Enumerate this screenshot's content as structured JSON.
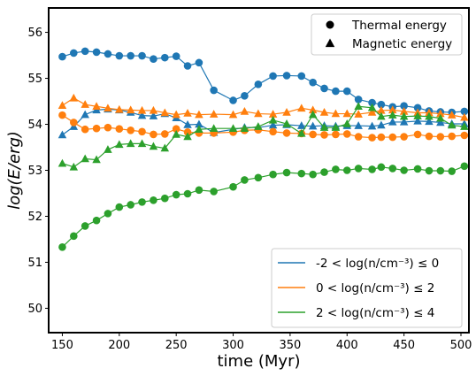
{
  "chart_data": {
    "type": "line",
    "xlabel": "time (Myr)",
    "ylabel": "log(E/erg)",
    "xlim": [
      138,
      507
    ],
    "ylim": [
      49.47,
      56.53
    ],
    "xticks": [
      150,
      200,
      250,
      300,
      350,
      400,
      450,
      500
    ],
    "yticks": [
      50,
      51,
      52,
      53,
      54,
      55,
      56
    ],
    "grid": false,
    "marker_legend": {
      "placement": "top-right",
      "entries": [
        {
          "label": "Thermal energy",
          "marker": "circle"
        },
        {
          "label": "Magnetic energy",
          "marker": "triangle"
        }
      ]
    },
    "color_legend_placement": "lower-right",
    "x": [
      150,
      160,
      170,
      180,
      190,
      200,
      210,
      220,
      230,
      240,
      250,
      260,
      270,
      283,
      300,
      310,
      322,
      335,
      347,
      360,
      370,
      380,
      390,
      400,
      410,
      422,
      430,
      440,
      450,
      462,
      472,
      482,
      492,
      503
    ],
    "series": [
      {
        "name": "-2 < log(n/cm⁻³) ≤ 0",
        "color": "#1f77b4",
        "thermal": [
          55.47,
          55.55,
          55.59,
          55.57,
          55.53,
          55.49,
          55.49,
          55.49,
          55.42,
          55.45,
          55.48,
          55.27,
          55.34,
          54.74,
          54.52,
          54.62,
          54.87,
          55.05,
          55.06,
          55.05,
          54.91,
          54.78,
          54.72,
          54.72,
          54.54,
          54.47,
          54.43,
          54.38,
          54.4,
          54.36,
          54.29,
          54.27,
          54.26,
          54.28
        ],
        "magnetic": [
          53.77,
          53.95,
          54.21,
          54.31,
          54.33,
          54.31,
          54.26,
          54.19,
          54.18,
          54.23,
          54.14,
          53.99,
          54.0,
          53.82,
          53.89,
          53.93,
          53.93,
          53.98,
          53.99,
          53.97,
          53.96,
          53.97,
          53.96,
          53.97,
          53.97,
          53.96,
          53.98,
          54.05,
          54.05,
          54.07,
          54.06,
          54.04,
          54.01,
          54.01
        ]
      },
      {
        "name": "0 < log(n/cm⁻³) ≤ 2",
        "color": "#ff7f0e",
        "thermal": [
          54.2,
          54.04,
          53.89,
          53.91,
          53.93,
          53.9,
          53.87,
          53.84,
          53.78,
          53.79,
          53.9,
          53.83,
          53.81,
          53.81,
          53.83,
          53.87,
          53.88,
          53.84,
          53.81,
          53.8,
          53.78,
          53.77,
          53.78,
          53.79,
          53.73,
          53.71,
          53.72,
          53.72,
          53.73,
          53.78,
          53.74,
          53.73,
          53.74,
          53.76
        ],
        "magnetic": [
          54.41,
          54.57,
          54.43,
          54.39,
          54.35,
          54.32,
          54.31,
          54.3,
          54.3,
          54.25,
          54.21,
          54.24,
          54.21,
          54.22,
          54.21,
          54.28,
          54.23,
          54.22,
          54.26,
          54.35,
          54.31,
          54.26,
          54.23,
          54.23,
          54.22,
          54.26,
          54.3,
          54.31,
          54.28,
          54.25,
          54.25,
          54.23,
          54.2,
          54.15
        ]
      },
      {
        "name": "2 < log(n/cm⁻³) ≤ 4",
        "color": "#2ca02c",
        "thermal": [
          51.33,
          51.57,
          51.79,
          51.91,
          52.06,
          52.2,
          52.25,
          52.31,
          52.35,
          52.39,
          52.47,
          52.49,
          52.57,
          52.54,
          52.64,
          52.79,
          52.84,
          52.91,
          52.95,
          52.93,
          52.91,
          52.96,
          53.02,
          53.0,
          53.04,
          53.02,
          53.07,
          53.04,
          53.0,
          53.03,
          52.99,
          52.99,
          52.98,
          53.09
        ],
        "magnetic": [
          53.15,
          53.07,
          53.25,
          53.23,
          53.45,
          53.56,
          53.58,
          53.58,
          53.52,
          53.48,
          53.78,
          53.73,
          53.89,
          53.91,
          53.91,
          53.91,
          53.95,
          54.09,
          54.01,
          53.8,
          54.21,
          53.93,
          53.93,
          54.01,
          54.39,
          54.36,
          54.17,
          54.2,
          54.17,
          54.18,
          54.17,
          54.13,
          53.98,
          53.95
        ]
      }
    ]
  }
}
